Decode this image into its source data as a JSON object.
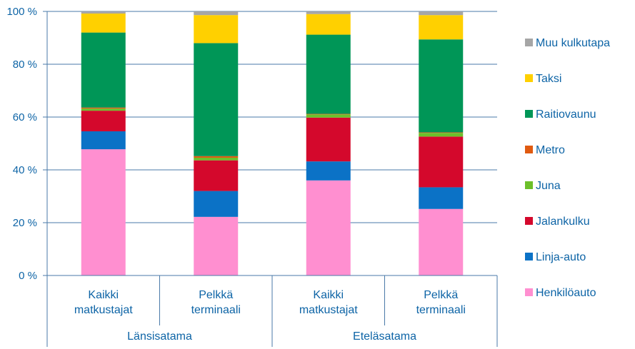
{
  "chart_data": {
    "type": "bar",
    "stacked": true,
    "title": "",
    "xlabel": "",
    "ylabel": "",
    "ylim": [
      0,
      100
    ],
    "y_ticks": [
      {
        "value": 0,
        "label": "0 %"
      },
      {
        "value": 20,
        "label": "20 %"
      },
      {
        "value": 40,
        "label": "40 %"
      },
      {
        "value": 60,
        "label": "60 %"
      },
      {
        "value": 80,
        "label": "80 %"
      },
      {
        "value": 100,
        "label": "100 %"
      }
    ],
    "grid": true,
    "legend_position": "right",
    "groups": [
      {
        "label": "Länsisatama",
        "categories": [
          0,
          1
        ]
      },
      {
        "label": "Eteläsatama",
        "categories": [
          2,
          3
        ]
      }
    ],
    "categories": [
      {
        "line1": "Kaikki",
        "line2": "matkustajat"
      },
      {
        "line1": "Pelkkä",
        "line2": "terminaali"
      },
      {
        "line1": "Kaikki",
        "line2": "matkustajat"
      },
      {
        "line1": "Pelkkä",
        "line2": "terminaali"
      }
    ],
    "series": [
      {
        "name": "Henkilöauto",
        "color": "#ff8fd0",
        "values": [
          47.8,
          22.2,
          36.0,
          25.2
        ]
      },
      {
        "name": "Linja-auto",
        "color": "#0b72c6",
        "values": [
          6.8,
          9.8,
          7.2,
          8.2
        ]
      },
      {
        "name": "Jalankulku",
        "color": "#d4082c",
        "values": [
          7.8,
          11.6,
          16.6,
          19.2
        ]
      },
      {
        "name": "Juna",
        "color": "#6cbf2a",
        "values": [
          0.8,
          1.0,
          1.2,
          1.4
        ]
      },
      {
        "name": "Metro",
        "color": "#e05a10",
        "values": [
          0.4,
          0.6,
          0.2,
          0.2
        ]
      },
      {
        "name": "Raitiovaunu",
        "color": "#009657",
        "values": [
          28.4,
          42.8,
          30.0,
          35.2
        ]
      },
      {
        "name": "Taksi",
        "color": "#ffd000",
        "values": [
          7.2,
          10.6,
          7.8,
          9.2
        ]
      },
      {
        "name": "Muu kulkutapa",
        "color": "#a6a6a6",
        "values": [
          0.8,
          1.4,
          1.0,
          1.4
        ]
      }
    ]
  }
}
